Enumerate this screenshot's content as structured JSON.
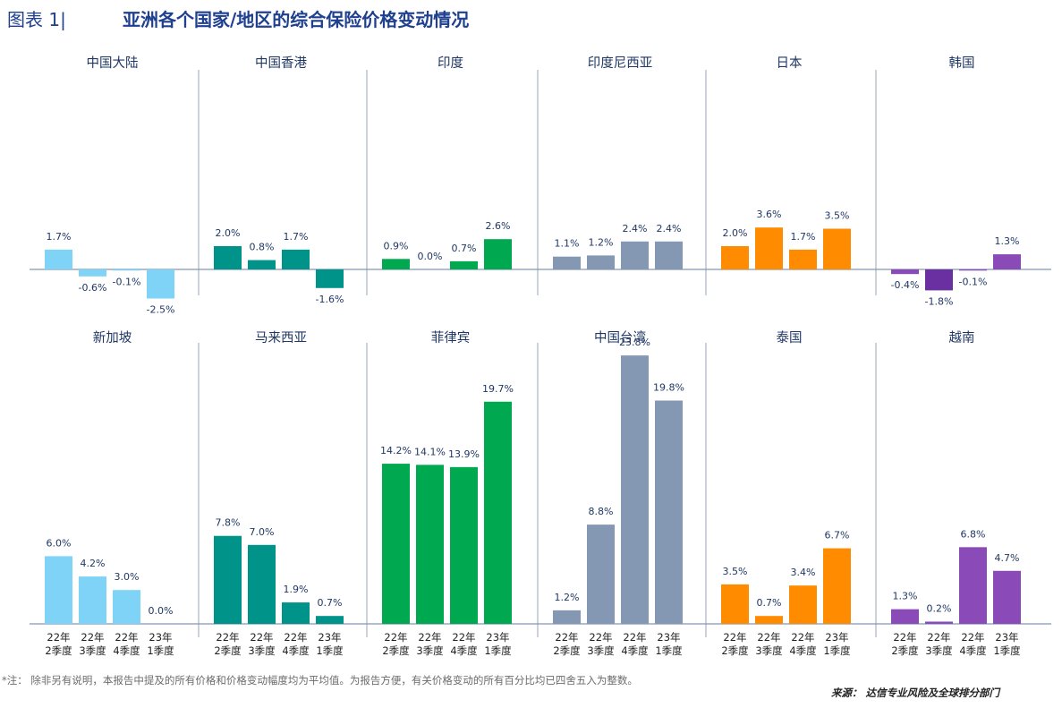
{
  "header": {
    "figure_label": "图表 1|",
    "title": "亚洲各个国家/地区的综合保险价格变动情况"
  },
  "footer": {
    "note": "*注：  除非另有说明，本报告中提及的所有价格和价格变动幅度均为平均值。为报告方便，有关价格变动的所有百分比均已四舍五入为整数。",
    "source": "来源：  达信专业风险及全球排分部门"
  },
  "colors": {
    "mainland_china": "#7fd3f7",
    "hong_kong": "#00938a",
    "india": "#00a84f",
    "indonesia": "#8497b3",
    "japan": "#ff8c00",
    "korea": "#8a4bb8",
    "korea_dark": "#6a2fa0",
    "axis": "#8497b3",
    "text": "#1f3864"
  },
  "chart_data": [
    {
      "type": "bar",
      "title": "中国大陆",
      "color": "#7fd3f7",
      "categories": [
        [
          "22年",
          "2季度"
        ],
        [
          "22年",
          "3季度"
        ],
        [
          "22年",
          "4季度"
        ],
        [
          "23年",
          "1季度"
        ]
      ],
      "values": [
        1.7,
        -0.6,
        -0.1,
        -2.5
      ],
      "labels": [
        "1.7%",
        "-0.6%",
        "-0.1%",
        "-2.5%"
      ]
    },
    {
      "type": "bar",
      "title": "中国香港",
      "color": "#00938a",
      "categories": [
        [
          "22年",
          "2季度"
        ],
        [
          "22年",
          "3季度"
        ],
        [
          "22年",
          "4季度"
        ],
        [
          "23年",
          "1季度"
        ]
      ],
      "values": [
        2.0,
        0.8,
        1.7,
        -1.6
      ],
      "labels": [
        "2.0%",
        "0.8%",
        "1.7%",
        "-1.6%"
      ]
    },
    {
      "type": "bar",
      "title": "印度",
      "color": "#00a84f",
      "categories": [
        [
          "22年",
          "2季度"
        ],
        [
          "22年",
          "3季度"
        ],
        [
          "22年",
          "4季度"
        ],
        [
          "23年",
          "1季度"
        ]
      ],
      "values": [
        0.9,
        0.0,
        0.7,
        2.6
      ],
      "labels": [
        "0.9%",
        "0.0%",
        "0.7%",
        "2.6%"
      ]
    },
    {
      "type": "bar",
      "title": "印度尼西亚",
      "color": "#8497b3",
      "categories": [
        [
          "22年",
          "2季度"
        ],
        [
          "22年",
          "3季度"
        ],
        [
          "22年",
          "4季度"
        ],
        [
          "23年",
          "1季度"
        ]
      ],
      "values": [
        1.1,
        1.2,
        2.4,
        2.4
      ],
      "labels": [
        "1.1%",
        "1.2%",
        "2.4%",
        "2.4%"
      ]
    },
    {
      "type": "bar",
      "title": "日本",
      "color": "#ff8c00",
      "categories": [
        [
          "22年",
          "2季度"
        ],
        [
          "22年",
          "3季度"
        ],
        [
          "22年",
          "4季度"
        ],
        [
          "23年",
          "1季度"
        ]
      ],
      "values": [
        2.0,
        3.6,
        1.7,
        3.5
      ],
      "labels": [
        "2.0%",
        "3.6%",
        "1.7%",
        "3.5%"
      ]
    },
    {
      "type": "bar",
      "title": "韩国",
      "color": "#8a4bb8",
      "colors": [
        "#8a4bb8",
        "#6a2fa0",
        "#8a4bb8",
        "#8a4bb8"
      ],
      "categories": [
        [
          "22年",
          "2季度"
        ],
        [
          "22年",
          "3季度"
        ],
        [
          "22年",
          "4季度"
        ],
        [
          "23年",
          "1季度"
        ]
      ],
      "values": [
        -0.4,
        -1.8,
        -0.1,
        1.3
      ],
      "labels": [
        "-0.4%",
        "-1.8%",
        "-0.1%",
        "1.3%"
      ]
    },
    {
      "type": "bar",
      "title": "新加坡",
      "color": "#7fd3f7",
      "categories": [
        [
          "22年",
          "2季度"
        ],
        [
          "22年",
          "3季度"
        ],
        [
          "22年",
          "4季度"
        ],
        [
          "23年",
          "1季度"
        ]
      ],
      "values": [
        6.0,
        4.2,
        3.0,
        0.0
      ],
      "labels": [
        "6.0%",
        "4.2%",
        "3.0%",
        "0.0%"
      ]
    },
    {
      "type": "bar",
      "title": "马来西亚",
      "color": "#00938a",
      "categories": [
        [
          "22年",
          "2季度"
        ],
        [
          "22年",
          "3季度"
        ],
        [
          "22年",
          "4季度"
        ],
        [
          "23年",
          "1季度"
        ]
      ],
      "values": [
        7.8,
        7.0,
        1.9,
        0.7
      ],
      "labels": [
        "7.8%",
        "7.0%",
        "1.9%",
        "0.7%"
      ]
    },
    {
      "type": "bar",
      "title": "菲律宾",
      "color": "#00a84f",
      "categories": [
        [
          "22年",
          "2季度"
        ],
        [
          "22年",
          "3季度"
        ],
        [
          "22年",
          "4季度"
        ],
        [
          "23年",
          "1季度"
        ]
      ],
      "values": [
        14.2,
        14.1,
        13.9,
        19.7
      ],
      "labels": [
        "14.2%",
        "14.1%",
        "13.9%",
        "19.7%"
      ]
    },
    {
      "type": "bar",
      "title": "中国台湾",
      "color": "#8497b3",
      "categories": [
        [
          "22年",
          "2季度"
        ],
        [
          "22年",
          "3季度"
        ],
        [
          "22年",
          "4季度"
        ],
        [
          "23年",
          "1季度"
        ]
      ],
      "values": [
        1.2,
        8.8,
        23.8,
        19.8
      ],
      "labels": [
        "1.2%",
        "8.8%",
        "23.8%",
        "19.8%"
      ]
    },
    {
      "type": "bar",
      "title": "泰国",
      "color": "#ff8c00",
      "categories": [
        [
          "22年",
          "2季度"
        ],
        [
          "22年",
          "3季度"
        ],
        [
          "22年",
          "4季度"
        ],
        [
          "23年",
          "1季度"
        ]
      ],
      "values": [
        3.5,
        0.7,
        3.4,
        6.7
      ],
      "labels": [
        "3.5%",
        "0.7%",
        "3.4%",
        "6.7%"
      ]
    },
    {
      "type": "bar",
      "title": "越南",
      "color": "#8a4bb8",
      "categories": [
        [
          "22年",
          "2季度"
        ],
        [
          "22年",
          "3季度"
        ],
        [
          "22年",
          "4季度"
        ],
        [
          "23年",
          "1季度"
        ]
      ],
      "values": [
        1.3,
        0.2,
        6.8,
        4.7
      ],
      "labels": [
        "1.3%",
        "0.2%",
        "6.8%",
        "4.7%"
      ]
    }
  ]
}
